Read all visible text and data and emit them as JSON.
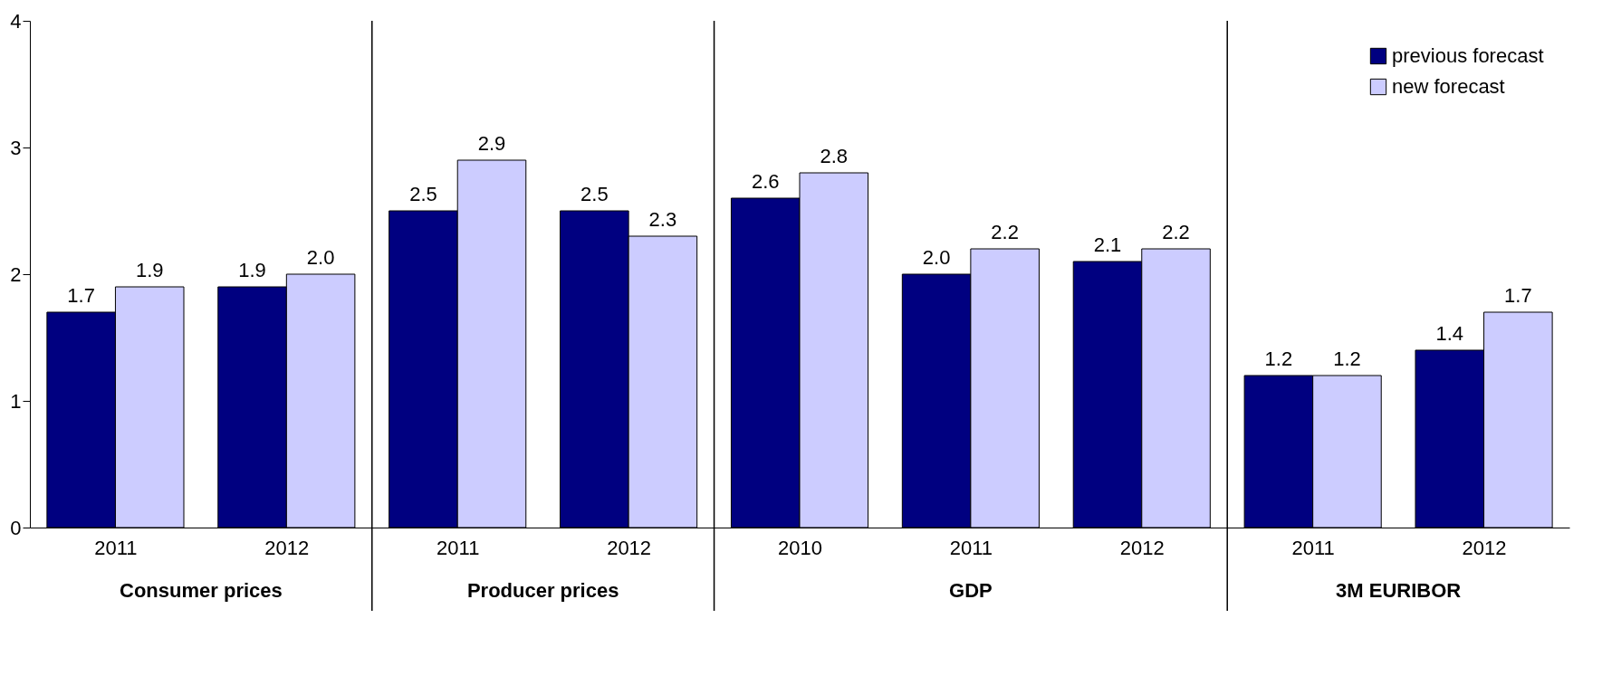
{
  "chart_data": {
    "type": "bar",
    "categories": [
      "2011",
      "2012",
      "2011",
      "2012",
      "2010",
      "2011",
      "2012",
      "2011",
      "2012"
    ],
    "series": [
      {
        "name": "previous forecast",
        "color": "#000080",
        "values": [
          1.7,
          1.9,
          2.5,
          2.5,
          2.6,
          2.0,
          2.1,
          1.2,
          1.4
        ],
        "value_labels": [
          "1.7",
          "1.9",
          "2.5",
          "2.5",
          "2.6",
          "2.0",
          "2.1",
          "1.2",
          "1.4"
        ]
      },
      {
        "name": "new forecast",
        "color": "#ccccff",
        "values": [
          1.9,
          2.0,
          2.9,
          2.3,
          2.8,
          2.2,
          2.2,
          1.2,
          1.7
        ],
        "value_labels": [
          "1.9",
          "2.0",
          "2.9",
          "2.3",
          "2.8",
          "2.2",
          "2.2",
          "1.2",
          "1.7"
        ]
      }
    ],
    "ylim": [
      0,
      4
    ],
    "yticks": [
      0,
      1,
      2,
      3,
      4
    ],
    "grid": false,
    "legend": "top right",
    "annotations": [
      "Consumer prices",
      "Producer prices",
      "GDP",
      "3M EURIBOR"
    ]
  }
}
